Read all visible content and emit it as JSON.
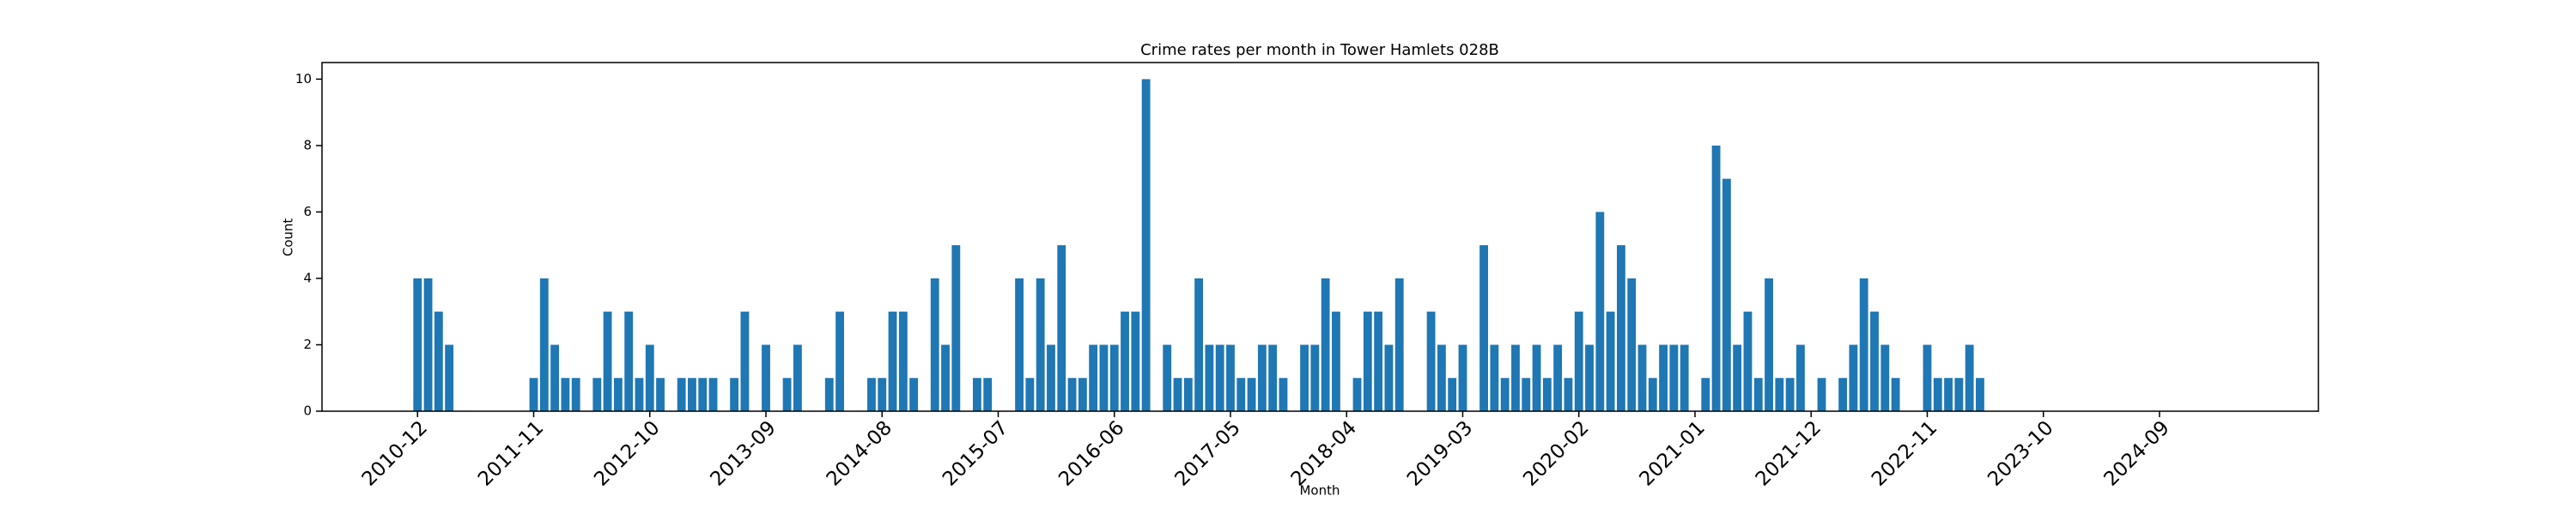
{
  "chart_data": {
    "type": "bar",
    "title": "Crime rates per month in Tower Hamlets 028B",
    "x_label": "Month",
    "y_label": "Count",
    "color": "#1f77b4",
    "grid": false,
    "categories": [
      "2010-12",
      null,
      null,
      null,
      null,
      null,
      null,
      null,
      null,
      null,
      null,
      "2011-11",
      null,
      null,
      null,
      null,
      null,
      null,
      null,
      null,
      null,
      null,
      "2012-10",
      null,
      null,
      null,
      null,
      null,
      null,
      null,
      null,
      null,
      null,
      "2013-09",
      null,
      null,
      null,
      null,
      null,
      null,
      null,
      null,
      null,
      null,
      "2014-08",
      null,
      null,
      null,
      null,
      null,
      null,
      null,
      null,
      null,
      null,
      "2015-07",
      null,
      null,
      null,
      null,
      null,
      null,
      null,
      null,
      null,
      null,
      "2016-06",
      null,
      null,
      null,
      null,
      null,
      null,
      null,
      null,
      null,
      null,
      "2017-05",
      null,
      null,
      null,
      null,
      null,
      null,
      null,
      null,
      null,
      null,
      "2018-04",
      null,
      null,
      null,
      null,
      null,
      null,
      null,
      null,
      null,
      null,
      "2019-03",
      null,
      null,
      null,
      null,
      null,
      null,
      null,
      null,
      null,
      null,
      "2020-02",
      null,
      null,
      null,
      null,
      null,
      null,
      null,
      null,
      null,
      null,
      "2021-01",
      null,
      null,
      null,
      null,
      null,
      null,
      null,
      null,
      null,
      null,
      "2021-12",
      null,
      null,
      null,
      null,
      null,
      null,
      null,
      null,
      null,
      null,
      "2022-11",
      null,
      null,
      null,
      null,
      null,
      null,
      null,
      null,
      null,
      null,
      "2023-10",
      null,
      null,
      null,
      null,
      null,
      null,
      null,
      null,
      null,
      null,
      "2024-09",
      null,
      null,
      null,
      null,
      null,
      null
    ],
    "values": [
      4,
      4,
      3,
      2,
      0,
      0,
      0,
      0,
      0,
      0,
      0,
      1,
      4,
      2,
      1,
      1,
      0,
      1,
      3,
      1,
      3,
      1,
      2,
      1,
      0,
      1,
      1,
      1,
      1,
      0,
      1,
      3,
      0,
      2,
      0,
      1,
      2,
      0,
      0,
      1,
      3,
      0,
      0,
      1,
      1,
      3,
      3,
      1,
      0,
      4,
      2,
      5,
      0,
      1,
      1,
      0,
      0,
      4,
      1,
      4,
      2,
      5,
      1,
      1,
      2,
      2,
      2,
      3,
      3,
      10,
      0,
      2,
      1,
      1,
      4,
      2,
      2,
      2,
      1,
      1,
      2,
      2,
      1,
      0,
      2,
      2,
      4,
      3,
      0,
      1,
      3,
      3,
      2,
      4,
      0,
      0,
      3,
      2,
      1,
      2,
      0,
      5,
      2,
      1,
      2,
      1,
      2,
      1,
      2,
      1,
      3,
      2,
      6,
      3,
      5,
      4,
      2,
      1,
      2,
      2,
      2,
      0,
      1,
      8,
      7,
      2,
      3,
      1,
      4,
      1,
      1,
      2,
      0,
      1,
      0,
      1,
      2,
      4,
      3,
      2,
      1,
      0,
      0,
      2,
      1,
      1,
      1,
      2,
      1,
      0,
      0,
      0,
      0,
      0,
      0,
      0,
      0,
      0,
      0,
      0,
      0,
      0,
      0,
      0,
      0,
      0,
      0,
      0,
      0,
      0,
      0,
      0
    ],
    "ylim": [
      0,
      10.5
    ],
    "yticks": [
      0,
      2,
      4,
      6,
      8,
      10
    ]
  }
}
